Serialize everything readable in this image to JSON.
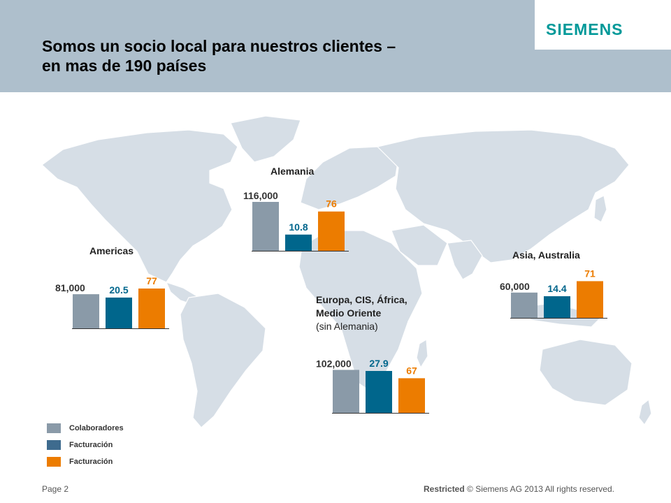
{
  "header": {
    "title_line1": "Somos un socio local para nuestros clientes –",
    "title_line2": "en mas de 190 países",
    "logo": "SIEMENS"
  },
  "colors": {
    "colaboradores": "#8a9aa8",
    "facturacion_blue": "#00668c",
    "facturacion_orange": "#ec7c00",
    "header_bg": "#aebfcc",
    "map_fill": "#d6dee6"
  },
  "legend": [
    {
      "label": "Colaboradores",
      "color": "#8a9aa8"
    },
    {
      "label": "Facturación",
      "color": "#3e6b8e"
    },
    {
      "label": "Facturación",
      "color": "#ec7c00"
    }
  ],
  "chart_data": [
    {
      "type": "bar",
      "region": "Americas",
      "title_lines": [
        "Americas"
      ],
      "values": [
        81000,
        20.5,
        77
      ],
      "value_labels": [
        "81,000",
        "20.5",
        "77"
      ]
    },
    {
      "type": "bar",
      "region": "Alemania",
      "title_lines": [
        "Alemania"
      ],
      "values": [
        116000,
        10.8,
        76
      ],
      "value_labels": [
        "116,000",
        "10.8",
        "76"
      ]
    },
    {
      "type": "bar",
      "region": "Asia, Australia",
      "title_lines": [
        "Asia, Australia"
      ],
      "values": [
        60000,
        14.4,
        71
      ],
      "value_labels": [
        "60,000",
        "14.4",
        "71"
      ]
    },
    {
      "type": "bar",
      "region": "Europa, CIS, África, Medio Oriente",
      "title_lines": [
        "Europa, CIS, África,",
        "Medio Oriente",
        "(sin Alemania)"
      ],
      "values": [
        102000,
        27.9,
        67
      ],
      "value_labels": [
        "102,000",
        "27.9",
        "67"
      ]
    }
  ],
  "footer": {
    "page": "Page 2",
    "restricted": "Restricted",
    "copyright": "© Siemens AG 2013 All rights reserved."
  }
}
